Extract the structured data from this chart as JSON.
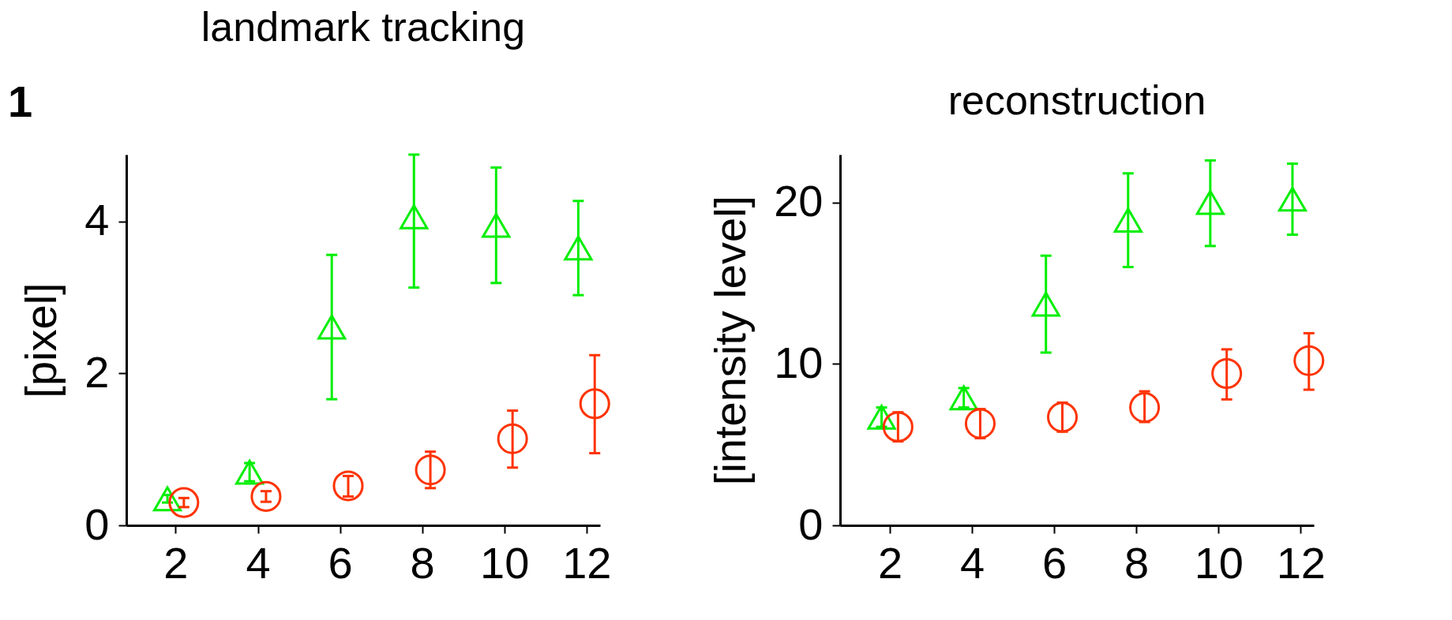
{
  "chart_data": [
    {
      "type": "scatter",
      "title": "landmark tracking",
      "ylabel": "[pixel]",
      "annotations": [
        "1"
      ],
      "xlim": [
        0.8,
        12.33
      ],
      "xticks": [
        2,
        4,
        6,
        8,
        10,
        12
      ],
      "ylim": [
        0,
        4.88
      ],
      "yticks": [
        0,
        2,
        4
      ],
      "series": [
        {
          "color": "#00ee00",
          "marker": "triangle",
          "x": [
            1.8,
            3.8,
            5.8,
            7.8,
            9.8,
            11.8
          ],
          "values": [
            0.35,
            0.7,
            2.61,
            4.06,
            3.95,
            3.65
          ],
          "errors": [
            [
              0.3,
              0.4
            ],
            [
              0.58,
              0.82
            ],
            [
              1.66,
              3.56
            ],
            [
              3.13,
              4.88
            ],
            [
              3.19,
              4.71
            ],
            [
              3.03,
              4.27
            ]
          ]
        },
        {
          "color": "#ff3300",
          "marker": "circle",
          "x": [
            2.2,
            4.2,
            6.2,
            8.2,
            10.2,
            12.2
          ],
          "values": [
            0.3,
            0.38,
            0.52,
            0.73,
            1.14,
            1.6
          ],
          "errors": [
            [
              0.24,
              0.36
            ],
            [
              0.31,
              0.45
            ],
            [
              0.38,
              0.65
            ],
            [
              0.49,
              0.97
            ],
            [
              0.76,
              1.51
            ],
            [
              0.95,
              2.24
            ]
          ]
        }
      ]
    },
    {
      "type": "scatter",
      "title": "reconstruction",
      "ylabel": "[intensity level]",
      "xlim": [
        0.79,
        12.32
      ],
      "xticks": [
        2,
        4,
        6,
        8,
        10,
        12
      ],
      "ylim": [
        0,
        22.96
      ],
      "yticks": [
        0,
        10,
        20
      ],
      "series": [
        {
          "color": "#00ee00",
          "marker": "triangle",
          "x": [
            1.8,
            3.8,
            5.8,
            7.8,
            9.8,
            11.8
          ],
          "values": [
            6.7,
            7.9,
            13.7,
            18.9,
            20.0,
            20.2
          ],
          "errors": [
            [
              6.1,
              7.3
            ],
            [
              7.3,
              8.5
            ],
            [
              10.7,
              16.7
            ],
            [
              16.0,
              21.8
            ],
            [
              17.3,
              22.6
            ],
            [
              18.0,
              22.4
            ]
          ]
        },
        {
          "color": "#ff3300",
          "marker": "circle",
          "x": [
            2.2,
            4.2,
            6.2,
            8.2,
            10.2,
            12.2
          ],
          "values": [
            6.1,
            6.3,
            6.7,
            7.3,
            9.4,
            10.2
          ],
          "errors": [
            [
              5.2,
              7.0
            ],
            [
              5.4,
              7.2
            ],
            [
              5.8,
              7.6
            ],
            [
              6.4,
              8.3
            ],
            [
              7.8,
              10.9
            ],
            [
              8.4,
              11.9
            ]
          ]
        }
      ]
    }
  ]
}
